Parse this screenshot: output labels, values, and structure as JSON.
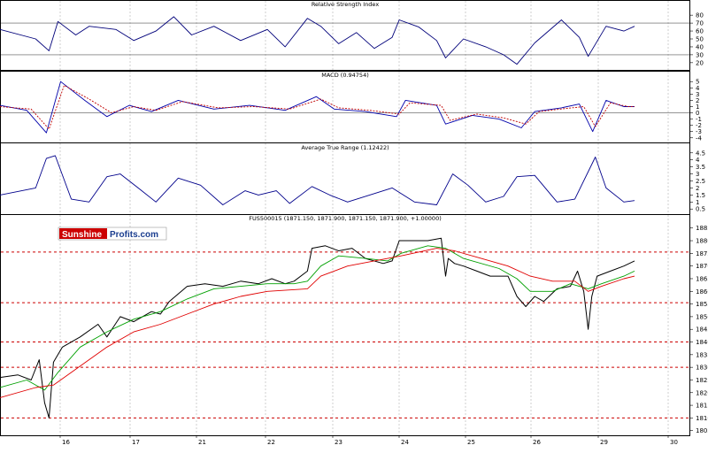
{
  "colors": {
    "price": "#000000",
    "rsi": "#00007a",
    "macd": "#0000aa",
    "macd_signal": "#c00000",
    "atr": "#00008b",
    "ma_fast": "#00a000",
    "ma_slow": "#e00000",
    "level_line": "#cc0000",
    "grid": "#b0b0b0",
    "logo_red": "#cc0000",
    "logo_blue": "#1a3d8f"
  },
  "logo": {
    "part1": "Sunshine",
    "part2": "Profits.com"
  },
  "chart_data": [
    {
      "type": "line",
      "title": "Relative Strength Index",
      "yticks": [
        20,
        30,
        40,
        50,
        60,
        70,
        80
      ],
      "ylim": [
        12,
        88
      ],
      "hlines": [
        30,
        70
      ],
      "grid": true,
      "series": [
        {
          "points": [
            [
              0,
              62
            ],
            [
              40,
              50
            ],
            [
              55,
              35
            ],
            [
              65,
              72
            ],
            [
              85,
              55
            ],
            [
              100,
              66
            ],
            [
              130,
              62
            ],
            [
              150,
              48
            ],
            [
              175,
              60
            ],
            [
              195,
              78
            ],
            [
              215,
              55
            ],
            [
              240,
              66
            ],
            [
              270,
              48
            ],
            [
              300,
              62
            ],
            [
              320,
              40
            ],
            [
              345,
              76
            ],
            [
              360,
              66
            ],
            [
              380,
              44
            ],
            [
              400,
              58
            ],
            [
              420,
              38
            ],
            [
              440,
              52
            ],
            [
              448,
              74
            ],
            [
              470,
              65
            ],
            [
              490,
              48
            ],
            [
              500,
              26
            ],
            [
              520,
              50
            ],
            [
              545,
              40
            ],
            [
              565,
              30
            ],
            [
              580,
              18
            ],
            [
              600,
              45
            ],
            [
              630,
              74
            ],
            [
              650,
              52
            ],
            [
              660,
              28
            ],
            [
              680,
              66
            ],
            [
              700,
              60
            ],
            [
              712,
              66
            ]
          ]
        }
      ]
    },
    {
      "type": "line",
      "title": "MACD (0.94754)",
      "yticks": [
        5,
        4,
        3,
        2,
        1,
        0,
        -1,
        -2,
        -3,
        -4
      ],
      "ylim": [
        -4.6,
        5.6
      ],
      "hlines": [
        0
      ],
      "grid": true,
      "series": [
        {
          "points": [
            [
              0,
              1.2
            ],
            [
              30,
              0.4
            ],
            [
              52,
              -3.2
            ],
            [
              68,
              5.0
            ],
            [
              95,
              2.0
            ],
            [
              120,
              -0.6
            ],
            [
              145,
              1.2
            ],
            [
              170,
              0.2
            ],
            [
              200,
              2.0
            ],
            [
              240,
              0.6
            ],
            [
              280,
              1.2
            ],
            [
              320,
              0.4
            ],
            [
              355,
              2.6
            ],
            [
              375,
              0.6
            ],
            [
              410,
              0.2
            ],
            [
              445,
              -0.6
            ],
            [
              455,
              2.0
            ],
            [
              490,
              1.2
            ],
            [
              500,
              -1.8
            ],
            [
              530,
              -0.4
            ],
            [
              560,
              -1.0
            ],
            [
              585,
              -2.4
            ],
            [
              600,
              0.2
            ],
            [
              630,
              0.8
            ],
            [
              650,
              1.4
            ],
            [
              665,
              -3.0
            ],
            [
              680,
              2.0
            ],
            [
              700,
              1.0
            ],
            [
              712,
              1.0
            ]
          ]
        },
        {
          "points": [
            [
              0,
              1.0
            ],
            [
              35,
              0.6
            ],
            [
              55,
              -2.6
            ],
            [
              72,
              4.4
            ],
            [
              100,
              2.2
            ],
            [
              125,
              0.0
            ],
            [
              150,
              1.0
            ],
            [
              175,
              0.4
            ],
            [
              205,
              1.8
            ],
            [
              245,
              0.8
            ],
            [
              285,
              1.0
            ],
            [
              325,
              0.6
            ],
            [
              360,
              2.2
            ],
            [
              380,
              0.8
            ],
            [
              415,
              0.4
            ],
            [
              448,
              -0.2
            ],
            [
              460,
              1.6
            ],
            [
              495,
              1.2
            ],
            [
              505,
              -1.2
            ],
            [
              535,
              -0.2
            ],
            [
              565,
              -0.8
            ],
            [
              590,
              -1.8
            ],
            [
              605,
              0.2
            ],
            [
              635,
              0.7
            ],
            [
              655,
              1.0
            ],
            [
              668,
              -2.2
            ],
            [
              685,
              1.6
            ],
            [
              705,
              1.0
            ],
            [
              712,
              1.0
            ]
          ]
        }
      ]
    },
    {
      "type": "line",
      "title": "Average True Range (1.12422)",
      "yticks": [
        4.5,
        4.0,
        3.5,
        3.0,
        2.5,
        2.0,
        1.5,
        1.0,
        0.5
      ],
      "ylim": [
        0.2,
        4.8
      ],
      "grid": true,
      "series": [
        {
          "points": [
            [
              0,
              1.5
            ],
            [
              40,
              2.0
            ],
            [
              52,
              4.1
            ],
            [
              62,
              4.3
            ],
            [
              80,
              1.2
            ],
            [
              100,
              1.0
            ],
            [
              120,
              2.8
            ],
            [
              135,
              3.0
            ],
            [
              155,
              2.0
            ],
            [
              175,
              1.0
            ],
            [
              200,
              2.7
            ],
            [
              225,
              2.2
            ],
            [
              250,
              0.8
            ],
            [
              275,
              1.8
            ],
            [
              290,
              1.5
            ],
            [
              310,
              1.8
            ],
            [
              325,
              0.9
            ],
            [
              350,
              2.1
            ],
            [
              370,
              1.5
            ],
            [
              390,
              1.0
            ],
            [
              420,
              1.6
            ],
            [
              440,
              2.0
            ],
            [
              465,
              1.0
            ],
            [
              490,
              0.8
            ],
            [
              508,
              3.0
            ],
            [
              525,
              2.2
            ],
            [
              545,
              1.0
            ],
            [
              565,
              1.4
            ],
            [
              580,
              2.8
            ],
            [
              600,
              2.9
            ],
            [
              625,
              1.0
            ],
            [
              645,
              1.2
            ],
            [
              668,
              4.2
            ],
            [
              680,
              2.0
            ],
            [
              700,
              1.0
            ],
            [
              712,
              1.1
            ]
          ]
        }
      ]
    },
    {
      "type": "line",
      "title": "FUS500015 (1871.150, 1871.900, 1871.150, 1871.900, +1.00000)",
      "categories": [
        "16",
        "17",
        "21",
        "22",
        "23",
        "24",
        "25",
        "26",
        "29",
        "30"
      ],
      "yticks": [
        1885,
        1880,
        1875,
        1870,
        1865,
        1860,
        1855,
        1850,
        1845,
        1840,
        1835,
        1830,
        1825,
        1820,
        1815,
        1810,
        1805
      ],
      "ylim": [
        1803.5,
        1887
      ],
      "hlines": [
        1875.5,
        1855.5,
        1840,
        1830,
        1810
      ],
      "grid": true,
      "series": [
        {
          "points": [
            [
              0,
              1826
            ],
            [
              20,
              1827
            ],
            [
              35,
              1825
            ],
            [
              44,
              1833
            ],
            [
              50,
              1816
            ],
            [
              55,
              1810
            ],
            [
              60,
              1832
            ],
            [
              70,
              1838
            ],
            [
              90,
              1842
            ],
            [
              110,
              1847
            ],
            [
              120,
              1842
            ],
            [
              135,
              1850
            ],
            [
              150,
              1848
            ],
            [
              170,
              1852
            ],
            [
              180,
              1851
            ],
            [
              190,
              1856
            ],
            [
              210,
              1862
            ],
            [
              230,
              1863
            ],
            [
              250,
              1862
            ],
            [
              270,
              1864
            ],
            [
              290,
              1863
            ],
            [
              305,
              1865
            ],
            [
              320,
              1863
            ],
            [
              330,
              1864
            ],
            [
              345,
              1868
            ],
            [
              350,
              1877
            ],
            [
              365,
              1878
            ],
            [
              380,
              1876
            ],
            [
              395,
              1877
            ],
            [
              410,
              1873
            ],
            [
              430,
              1871
            ],
            [
              440,
              1872
            ],
            [
              448,
              1880
            ],
            [
              460,
              1880
            ],
            [
              480,
              1880
            ],
            [
              495,
              1881
            ],
            [
              500,
              1866
            ],
            [
              503,
              1873
            ],
            [
              510,
              1871
            ],
            [
              520,
              1870
            ],
            [
              535,
              1868
            ],
            [
              550,
              1866
            ],
            [
              570,
              1866
            ],
            [
              580,
              1858
            ],
            [
              590,
              1854
            ],
            [
              600,
              1858
            ],
            [
              610,
              1856
            ],
            [
              625,
              1861
            ],
            [
              640,
              1862
            ],
            [
              648,
              1868
            ],
            [
              655,
              1860
            ],
            [
              660,
              1845
            ],
            [
              664,
              1858
            ],
            [
              670,
              1866
            ],
            [
              685,
              1868
            ],
            [
              700,
              1870
            ],
            [
              712,
              1872
            ]
          ]
        },
        {
          "points": [
            [
              0,
              1822
            ],
            [
              30,
              1825
            ],
            [
              50,
              1821
            ],
            [
              65,
              1828
            ],
            [
              90,
              1838
            ],
            [
              120,
              1844
            ],
            [
              150,
              1849
            ],
            [
              180,
              1852
            ],
            [
              210,
              1857
            ],
            [
              240,
              1861
            ],
            [
              270,
              1862
            ],
            [
              300,
              1863
            ],
            [
              330,
              1863
            ],
            [
              345,
              1864
            ],
            [
              360,
              1870
            ],
            [
              380,
              1874
            ],
            [
              410,
              1873
            ],
            [
              435,
              1872
            ],
            [
              450,
              1875
            ],
            [
              480,
              1878
            ],
            [
              500,
              1877
            ],
            [
              520,
              1873
            ],
            [
              560,
              1869
            ],
            [
              580,
              1865
            ],
            [
              595,
              1860
            ],
            [
              620,
              1860
            ],
            [
              640,
              1863
            ],
            [
              660,
              1861
            ],
            [
              675,
              1863
            ],
            [
              700,
              1866
            ],
            [
              712,
              1868
            ]
          ]
        },
        {
          "points": [
            [
              0,
              1818
            ],
            [
              40,
              1822
            ],
            [
              60,
              1823
            ],
            [
              80,
              1828
            ],
            [
              120,
              1838
            ],
            [
              150,
              1844
            ],
            [
              180,
              1847
            ],
            [
              210,
              1851
            ],
            [
              240,
              1855
            ],
            [
              270,
              1858
            ],
            [
              300,
              1860
            ],
            [
              345,
              1861
            ],
            [
              360,
              1866
            ],
            [
              390,
              1870
            ],
            [
              420,
              1872
            ],
            [
              450,
              1874
            ],
            [
              490,
              1877
            ],
            [
              510,
              1876
            ],
            [
              540,
              1873
            ],
            [
              570,
              1870
            ],
            [
              595,
              1866
            ],
            [
              620,
              1864
            ],
            [
              645,
              1864
            ],
            [
              660,
              1860
            ],
            [
              675,
              1862
            ],
            [
              700,
              1865
            ],
            [
              712,
              1866
            ]
          ]
        }
      ]
    }
  ]
}
